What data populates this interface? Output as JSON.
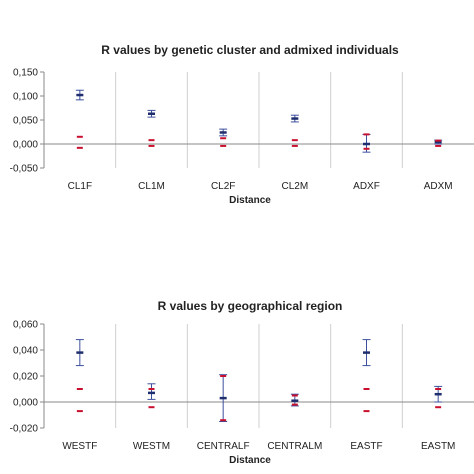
{
  "chart_data": [
    {
      "type": "scatter",
      "title": "R values by genetic cluster and admixed individuals",
      "xlabel": "Distance",
      "ylabel": "",
      "ylim": [
        -0.05,
        0.15
      ],
      "yticks": [
        "-0,050",
        "0,000",
        "0,050",
        "0,100",
        "0,150"
      ],
      "ytick_values": [
        -0.05,
        0.0,
        0.05,
        0.1,
        0.15
      ],
      "categories": [
        "CL1F",
        "CL1M",
        "CL2F",
        "CL2M",
        "ADXF",
        "ADXM"
      ],
      "grid": "vertical",
      "series": [
        {
          "role": "observed R",
          "color": "#3b4f9c",
          "values": [
            0.102,
            0.063,
            0.024,
            0.053,
            0.0,
            0.004
          ],
          "err_low": [
            0.092,
            0.056,
            0.017,
            0.046,
            -0.017,
            0.0
          ],
          "err_high": [
            0.112,
            0.07,
            0.031,
            0.06,
            0.02,
            0.008
          ]
        },
        {
          "role": "upper confidence",
          "color": "#c8102e",
          "values": [
            0.015,
            0.008,
            0.012,
            0.008,
            0.02,
            0.007
          ]
        },
        {
          "role": "lower confidence",
          "color": "#c8102e",
          "values": [
            -0.008,
            -0.004,
            -0.004,
            -0.004,
            -0.01,
            -0.004
          ]
        }
      ]
    },
    {
      "type": "scatter",
      "title": "R values by geographical region",
      "xlabel": "Distance",
      "ylabel": "",
      "ylim": [
        -0.02,
        0.06
      ],
      "yticks": [
        "-0,020",
        "0,000",
        "0,020",
        "0,040",
        "0,060"
      ],
      "ytick_values": [
        -0.02,
        0.0,
        0.02,
        0.04,
        0.06
      ],
      "categories": [
        "WESTF",
        "WESTM",
        "CENTRALF",
        "CENTRALM",
        "EASTF",
        "EASTM"
      ],
      "grid": "vertical",
      "series": [
        {
          "role": "observed R",
          "color": "#3b4f9c",
          "values": [
            0.038,
            0.007,
            0.003,
            0.001,
            0.038,
            0.006
          ],
          "err_low": [
            0.028,
            0.002,
            -0.015,
            -0.003,
            0.028,
            0.0
          ],
          "err_high": [
            0.048,
            0.014,
            0.021,
            0.006,
            0.048,
            0.012
          ]
        },
        {
          "role": "upper confidence",
          "color": "#c8102e",
          "values": [
            0.01,
            0.01,
            0.02,
            0.005,
            0.01,
            0.01
          ]
        },
        {
          "role": "lower confidence",
          "color": "#c8102e",
          "values": [
            -0.007,
            -0.004,
            -0.014,
            -0.002,
            -0.007,
            -0.004
          ]
        }
      ]
    }
  ]
}
